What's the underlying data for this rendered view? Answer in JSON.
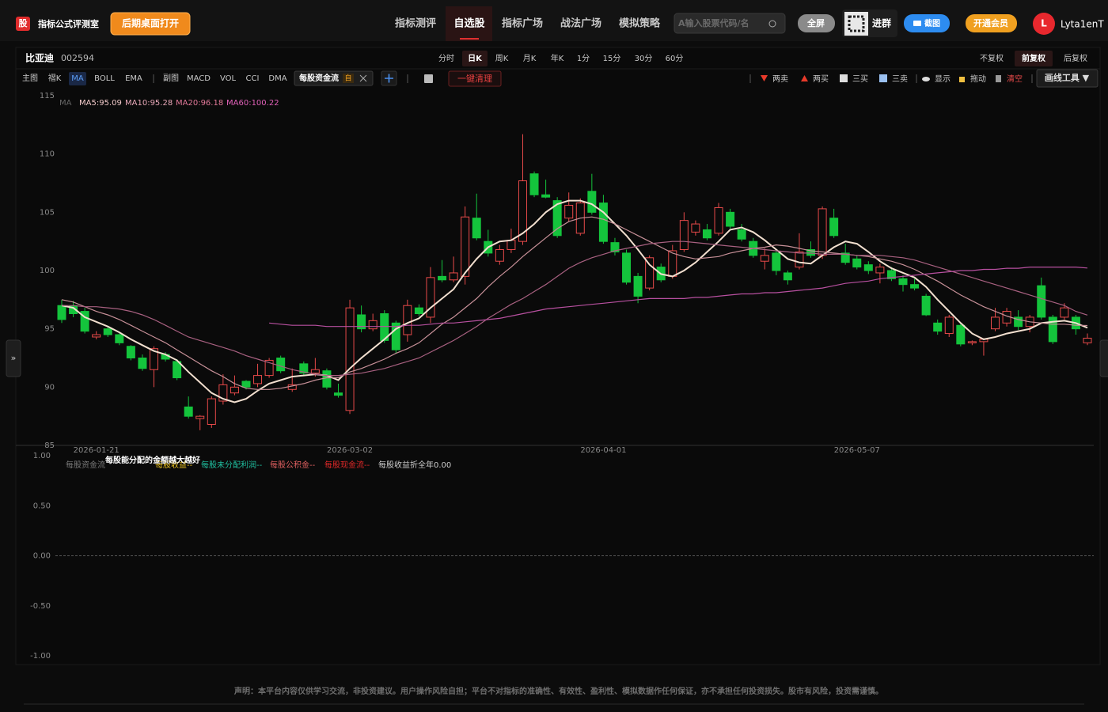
{
  "header": {
    "logo": "股",
    "app_name": "指标公式评测室",
    "open_button": "后期桌面打开",
    "nav": [
      "指标测评",
      "自选股",
      "指标广场",
      "战法广场",
      "模拟策略"
    ],
    "nav_active": 1,
    "search_placeholder": "A输入股票代码/名",
    "fullscreen": "全屏",
    "join_group": "进群",
    "screenshot": "截图",
    "vip": "开通会员",
    "avatar": "L",
    "username": "Lyta1enT"
  },
  "toolbar": {
    "stock_name": "比亚迪",
    "stock_code": "002594",
    "periods": [
      "分时",
      "日K",
      "周K",
      "月K",
      "年K",
      "1分",
      "15分",
      "30分",
      "60分"
    ],
    "period_active": 1,
    "adjust": [
      "不复权",
      "前复权",
      "后复权"
    ],
    "adjust_active": 1,
    "main_label": "主图",
    "main_indicators": [
      "褶K",
      "MA",
      "BOLL",
      "EMA"
    ],
    "main_active": 1,
    "sub_label": "副图",
    "sub_indicators": [
      "MACD",
      "VOL",
      "CCI",
      "DMA"
    ],
    "custom_tag": "每股资金流",
    "custom_badge": "自",
    "clear_all": "一键清理",
    "tools": [
      "两卖",
      "两买",
      "三买",
      "三卖",
      "显示",
      "拖动",
      "清空"
    ],
    "draw_tool": "画线工具 ▼"
  },
  "side_toggle": "»",
  "chart_data": [
    {
      "type": "candlestick",
      "legend_label": "MA",
      "categories": [
        null,
        null,
        null,
        "2026-01-21",
        null,
        null,
        null,
        null,
        null,
        null,
        null,
        null,
        null,
        null,
        null,
        null,
        null,
        null,
        null,
        null,
        null,
        null,
        null,
        null,
        null,
        "2026-03-02",
        null,
        null,
        null,
        null,
        null,
        null,
        null,
        null,
        null,
        null,
        null,
        null,
        null,
        null,
        null,
        null,
        null,
        null,
        null,
        null,
        null,
        "2026-04-01",
        null,
        null,
        null,
        null,
        null,
        null,
        null,
        null,
        null,
        null,
        null,
        null,
        null,
        null,
        null,
        null,
        null,
        null,
        null,
        null,
        null,
        "2026-05-07",
        null,
        null,
        null,
        null,
        null,
        null,
        null,
        null,
        null,
        null,
        null,
        null,
        null,
        null,
        null,
        null,
        null,
        null,
        null,
        null
      ],
      "ohlc": [
        [
          97,
          97.5,
          95.5,
          95.8
        ],
        [
          97,
          97.4,
          96,
          96.3
        ],
        [
          96.5,
          96.8,
          94.6,
          94.8
        ],
        [
          94.3,
          94.8,
          94.1,
          94.5
        ],
        [
          95,
          95.2,
          94.3,
          94.5
        ],
        [
          94.5,
          94.6,
          93.6,
          93.8
        ],
        [
          93.5,
          93.6,
          92.3,
          92.5
        ],
        [
          92.5,
          92.8,
          91.4,
          91.6
        ],
        [
          91.5,
          93.5,
          90,
          93.3
        ],
        [
          92.8,
          93,
          92.2,
          92.4
        ],
        [
          92.2,
          92.4,
          90.6,
          90.8
        ],
        [
          88.3,
          89.2,
          87.3,
          87.5
        ],
        [
          87.3,
          87.6,
          86.3,
          87.5
        ],
        [
          86.8,
          89.2,
          86.5,
          89
        ],
        [
          88.8,
          91.1,
          88.5,
          90.2
        ],
        [
          89.5,
          91,
          89.3,
          90
        ],
        [
          90.5,
          90.6,
          89.8,
          90
        ],
        [
          90.3,
          92,
          90,
          91
        ],
        [
          91,
          92.5,
          90.8,
          92.3
        ],
        [
          92.5,
          92.7,
          91.2,
          91.4
        ],
        [
          89.8,
          91.6,
          89.6,
          90.2
        ],
        [
          92,
          92.2,
          91,
          91.2
        ],
        [
          91.2,
          92.5,
          90.9,
          91.5
        ],
        [
          91.4,
          91.6,
          89.8,
          90
        ],
        [
          89.5,
          90.3,
          89.1,
          89.3
        ],
        [
          88,
          97.5,
          87.7,
          96.8
        ],
        [
          96.2,
          97,
          94.7,
          95
        ],
        [
          95,
          96.3,
          94.8,
          95.7
        ],
        [
          96.3,
          96.6,
          93.8,
          94
        ],
        [
          95.5,
          95.7,
          92.9,
          93.2
        ],
        [
          94.5,
          97.5,
          93.9,
          97
        ],
        [
          96.8,
          97.1,
          96.1,
          96.3
        ],
        [
          96,
          100.3,
          95.5,
          99.4
        ],
        [
          99.5,
          100.9,
          99,
          99.2
        ],
        [
          99.2,
          101.2,
          99,
          99.8
        ],
        [
          99.5,
          105.5,
          98.8,
          104.6
        ],
        [
          104.5,
          106.6,
          102.6,
          102.8
        ],
        [
          102.5,
          103.5,
          101.2,
          101.5
        ],
        [
          100.8,
          102.2,
          100.5,
          101.8
        ],
        [
          101.8,
          103.6,
          101.5,
          102.6
        ],
        [
          102.5,
          111.7,
          102.2,
          107.7
        ],
        [
          108.3,
          108.5,
          106.3,
          106.5
        ],
        [
          106.5,
          107.8,
          106.2,
          106.3
        ],
        [
          106,
          106.3,
          102.8,
          103
        ],
        [
          104.5,
          106.7,
          104.2,
          105.6
        ],
        [
          103.2,
          106.2,
          103,
          105.8
        ],
        [
          106.8,
          108.3,
          104.8,
          105
        ],
        [
          105.8,
          106.5,
          102.3,
          102.5
        ],
        [
          102.4,
          102.8,
          101.3,
          101.6
        ],
        [
          101.5,
          101.8,
          98.8,
          99
        ],
        [
          99.5,
          99.8,
          97.2,
          97.8
        ],
        [
          98.5,
          101.3,
          98.3,
          101.1
        ],
        [
          100.3,
          100.6,
          99,
          99.2
        ],
        [
          99.5,
          102.2,
          99.3,
          101.7
        ],
        [
          101.8,
          105,
          101.6,
          104.3
        ],
        [
          103.3,
          104.3,
          103,
          104
        ],
        [
          103.5,
          104,
          102.6,
          102.8
        ],
        [
          103.2,
          105.8,
          103,
          105.4
        ],
        [
          105,
          105.3,
          103.6,
          103.8
        ],
        [
          103.5,
          104,
          102.5,
          102.7
        ],
        [
          102.5,
          102.8,
          101.1,
          101.3
        ],
        [
          100.8,
          101.9,
          100.1,
          101.3
        ],
        [
          101.5,
          101.7,
          99.6,
          100
        ],
        [
          99.8,
          100,
          98.8,
          99.2
        ],
        [
          100.3,
          103.2,
          100.1,
          101.6
        ],
        [
          101.8,
          102.5,
          101.1,
          101.3
        ],
        [
          101.3,
          105.5,
          101,
          105.3
        ],
        [
          104.5,
          105.3,
          102.8,
          103
        ],
        [
          101.5,
          102.3,
          100.5,
          100.7
        ],
        [
          101,
          101.3,
          100.1,
          100.3
        ],
        [
          100.5,
          100.8,
          99.7,
          100
        ],
        [
          99.8,
          100.6,
          98.9,
          100.3
        ],
        [
          100,
          100.3,
          99.1,
          99.3
        ],
        [
          99.3,
          99.6,
          98.2,
          98.8
        ],
        [
          98.8,
          99.3,
          98.3,
          98.5
        ],
        [
          97.8,
          98,
          96.1,
          96.2
        ],
        [
          95.5,
          95.8,
          94.5,
          94.8
        ],
        [
          94.6,
          96.2,
          94.3,
          96
        ],
        [
          95.3,
          95.5,
          93.5,
          93.7
        ],
        [
          93.8,
          94,
          93.6,
          93.9
        ],
        [
          93.9,
          94.2,
          92.7,
          94.1
        ],
        [
          95,
          96.8,
          94.8,
          96
        ],
        [
          95.5,
          96.8,
          95.2,
          96.5
        ],
        [
          96,
          96.6,
          94.9,
          95.2
        ],
        [
          95.2,
          96.2,
          94.7,
          96
        ],
        [
          98.7,
          99.4,
          95.8,
          96
        ],
        [
          96,
          96.2,
          93.7,
          93.9
        ],
        [
          96,
          97.2,
          95.8,
          96.8
        ],
        [
          96,
          96.2,
          94.5,
          95
        ],
        [
          93.8,
          94.6,
          93.6,
          94.2
        ]
      ],
      "up_color": "#e84a4a",
      "down_color": "#14c43c",
      "series": [
        {
          "name": "MA5:95.09",
          "color": "#f2dfcf",
          "legend_color": "#f0c8c8",
          "values": [
            97,
            96.8,
            96,
            95.6,
            95.2,
            94.7,
            94.1,
            93.6,
            93.1,
            92.8,
            92.3,
            91.3,
            90.4,
            89.5,
            89,
            88.7,
            89,
            89.7,
            90.3,
            90.6,
            90.9,
            91,
            91.1,
            91,
            90.6,
            91.6,
            92.5,
            93.3,
            94.1,
            95,
            95.5,
            95.9,
            96.8,
            97.6,
            98.4,
            99.8,
            101,
            102,
            102.5,
            102.6,
            103.2,
            104,
            105,
            105.7,
            106,
            106,
            105.7,
            105,
            104,
            103,
            101.8,
            100.5,
            99.7,
            99.5,
            100,
            100.7,
            101.6,
            102.5,
            103.5,
            103.7,
            103.3,
            102.6,
            101.8,
            101,
            100.7,
            100.6,
            101.3,
            102,
            102.5,
            102.3,
            101.6,
            100.8,
            100.2,
            99.8,
            99.4,
            98.6,
            97.5,
            96.5,
            95.5,
            94.6,
            94.1,
            94.3,
            94.6,
            94.8,
            95,
            95.5,
            95.6,
            95.7,
            95.5,
            95.09
          ]
        },
        {
          "name": "MA10:95.28",
          "color": "#c79098",
          "legend_color": "#e8a8b8",
          "values": [
            97.5,
            97.3,
            96.9,
            96.5,
            96.2,
            95.8,
            95.3,
            94.8,
            94.3,
            93.8,
            93.2,
            92.6,
            92,
            91.4,
            90.9,
            90.3,
            89.9,
            89.8,
            89.8,
            89.9,
            90.1,
            90.3,
            90.6,
            90.8,
            90.8,
            91.3,
            91.6,
            92,
            92.4,
            92.9,
            93.3,
            93.8,
            94.6,
            95.4,
            96,
            96.8,
            97.6,
            98.6,
            99.5,
            100.3,
            101.2,
            102,
            102.8,
            103.6,
            104.2,
            104.5,
            104.6,
            104.4,
            104,
            103.5,
            103,
            102.5,
            102,
            101.5,
            101.2,
            101,
            101.1,
            101.2,
            101.5,
            101.7,
            101.9,
            102,
            102.2,
            102.1,
            101.9,
            101.7,
            101.6,
            101.5,
            101.4,
            101.3,
            101.2,
            101,
            100.8,
            100.5,
            100.1,
            99.6,
            99.1,
            98.5,
            97.9,
            97.4,
            96.9,
            96.5,
            96.1,
            95.8,
            95.6,
            95.5,
            95.4,
            95.4,
            95.3,
            95.28
          ]
        },
        {
          "name": "MA20:96.18",
          "color": "#a86080",
          "legend_color": "#e07898",
          "values": [
            97,
            97,
            96.9,
            96.9,
            96.8,
            96.7,
            96.5,
            96.2,
            95.8,
            95.3,
            94.8,
            94.3,
            94,
            93.7,
            93.4,
            93.1,
            92.7,
            92.4,
            92.1,
            91.8,
            91.5,
            91.3,
            91.1,
            91,
            91,
            91.1,
            91.2,
            91.4,
            91.6,
            91.9,
            92.2,
            92.5,
            93,
            93.5,
            94,
            94.6,
            95.2,
            95.9,
            96.5,
            97.1,
            97.6,
            98.2,
            98.8,
            99.5,
            100.2,
            100.7,
            101.1,
            101.4,
            101.7,
            101.9,
            102.1,
            102.3,
            102.4,
            102.5,
            102.5,
            102.4,
            102.3,
            102.2,
            102.1,
            102,
            101.9,
            101.8,
            101.7,
            101.6,
            101.5,
            101.5,
            101.4,
            101.4,
            101.4,
            101.3,
            101.3,
            101.3,
            101.2,
            101.1,
            100.9,
            100.6,
            100.3,
            100,
            99.7,
            99.4,
            99.1,
            98.8,
            98.5,
            98.2,
            97.9,
            97.6,
            97.3,
            97,
            96.5,
            96.18
          ]
        },
        {
          "name": "MA60:100.22",
          "color": "#b850a0",
          "legend_color": "#e060b8",
          "values": [
            null,
            null,
            null,
            null,
            null,
            null,
            null,
            null,
            null,
            null,
            null,
            null,
            null,
            null,
            null,
            null,
            null,
            null,
            95.5,
            95.4,
            95.3,
            95.3,
            95.3,
            95.2,
            95.2,
            95.2,
            95.2,
            95.2,
            95.2,
            95.2,
            95.3,
            95.3,
            95.4,
            95.5,
            95.5,
            95.6,
            95.7,
            95.8,
            95.9,
            96.1,
            96.3,
            96.5,
            96.7,
            96.8,
            96.9,
            97,
            97.1,
            97.2,
            97.3,
            97.4,
            97.5,
            97.6,
            97.6,
            97.6,
            97.6,
            97.7,
            97.7,
            97.8,
            97.9,
            98,
            98,
            98.1,
            98.1,
            98.2,
            98.3,
            98.4,
            98.5,
            98.7,
            98.9,
            99,
            99.1,
            99.3,
            99.4,
            99.5,
            99.6,
            99.7,
            99.8,
            99.9,
            100,
            100,
            100.1,
            100.1,
            100.2,
            100.2,
            100.3,
            100.3,
            100.3,
            100.3,
            100.3,
            100.22
          ]
        }
      ],
      "ylim": [
        85,
        115
      ],
      "yticks": [
        85,
        90,
        95,
        100,
        105,
        110,
        115
      ]
    },
    {
      "type": "indicator",
      "tooltip": "每股能分配的金额越大越好",
      "legend": [
        {
          "text": "每股资金流",
          "color": "#7a7a7a"
        },
        {
          "text": "每股收益--",
          "color": "#e8c020"
        },
        {
          "text": "每股未分配利润--",
          "color": "#20c0a0"
        },
        {
          "text": "每股公积金--",
          "color": "#e06060"
        },
        {
          "text": "每股现金流--",
          "color": "#e02828"
        },
        {
          "text": "每股收益折全年0.00",
          "color": "#cccccc"
        }
      ],
      "ylim": [
        -1,
        1
      ],
      "yticks": [
        {
          "value": 1,
          "label": "1.00"
        },
        {
          "value": 0.5,
          "label": "0.50"
        },
        {
          "value": 0,
          "label": "0.00"
        },
        {
          "value": -0.5,
          "label": "-0.50"
        },
        {
          "value": -1,
          "label": "-1.00"
        }
      ],
      "zero_line": true
    }
  ],
  "footer": {
    "disclaimer": "声明：本平台内容仅供学习交流，非投资建议。用户操作风险自担；平台不对指标的准确性、有效性、盈利性、模拟数据作任何保证，亦不承担任何投资损失。股市有风险，投资需谨慎。"
  }
}
